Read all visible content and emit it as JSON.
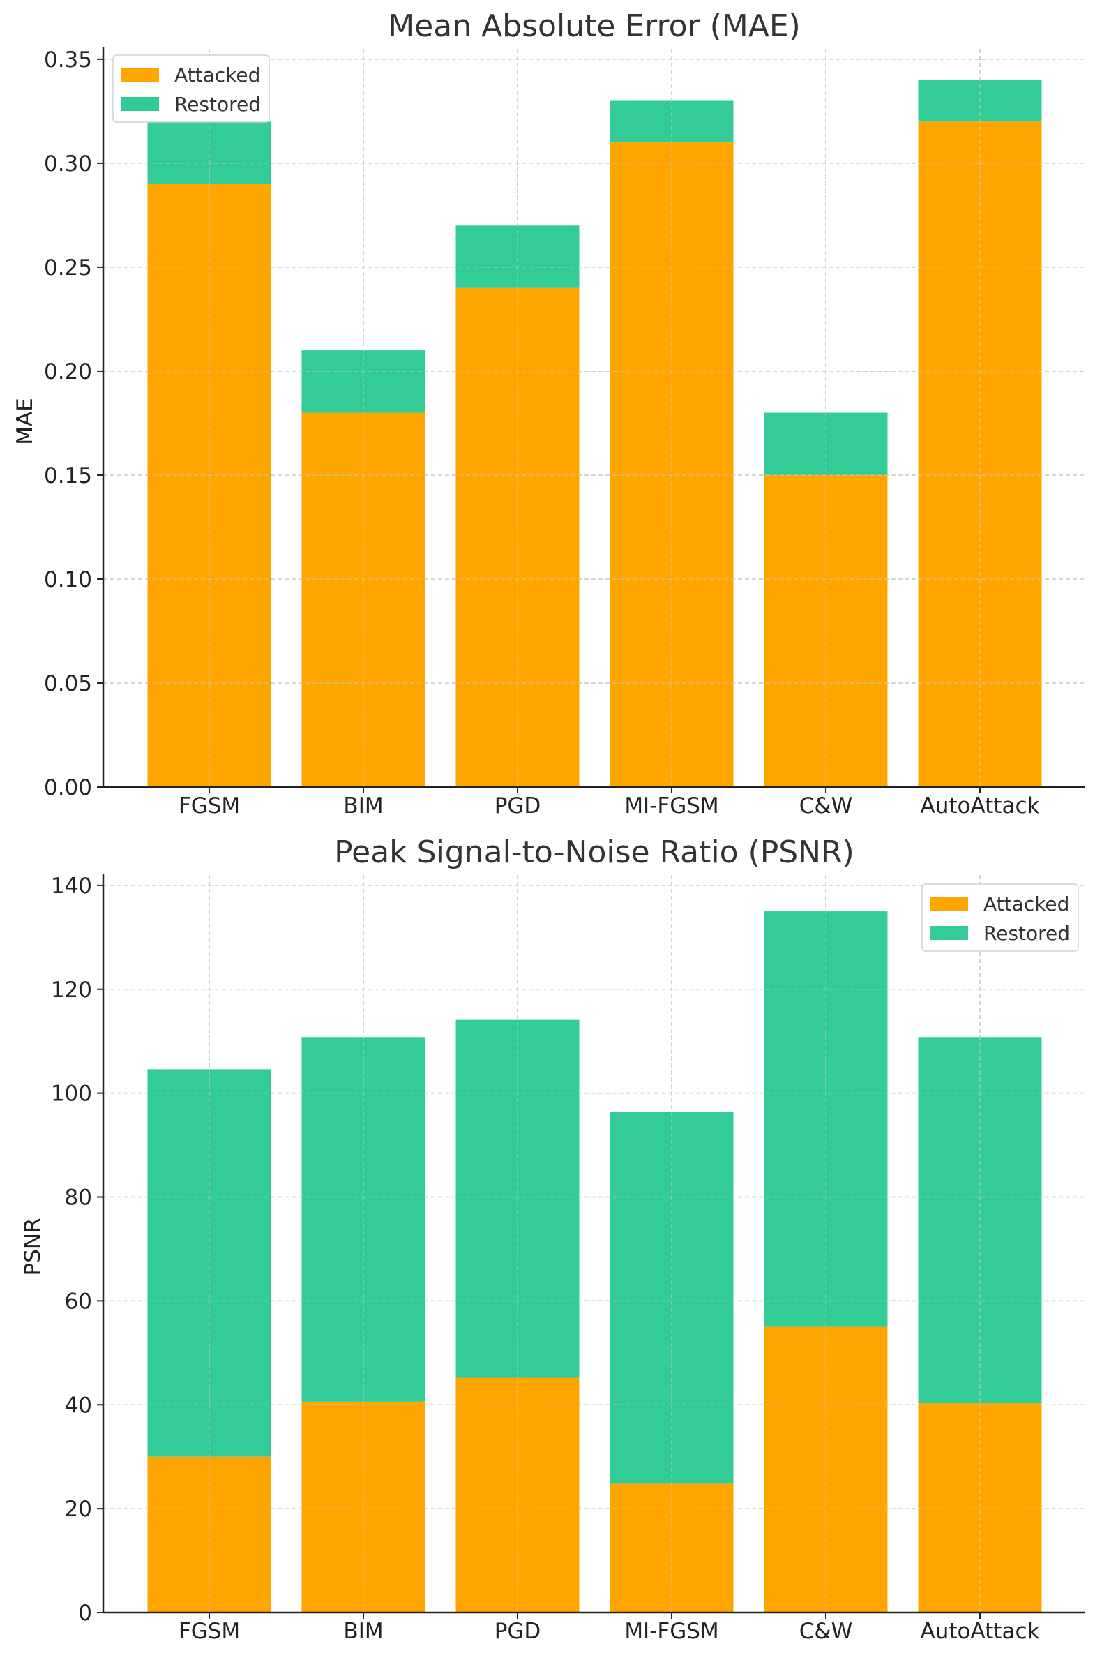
{
  "chart_data": [
    {
      "type": "bar",
      "stacked": true,
      "title": "Mean Absolute Error (MAE)",
      "xlabel": "",
      "ylabel": "MAE",
      "categories": [
        "FGSM",
        "BIM",
        "PGD",
        "MI-FGSM",
        "C&W",
        "AutoAttack"
      ],
      "series": [
        {
          "name": "Attacked",
          "color": "#FFA500",
          "values": [
            0.29,
            0.18,
            0.24,
            0.31,
            0.15,
            0.32
          ]
        },
        {
          "name": "Restored",
          "color": "#33CC96",
          "values": [
            0.03,
            0.03,
            0.03,
            0.02,
            0.03,
            0.02
          ]
        }
      ],
      "ylim": [
        0,
        0.355
      ],
      "yticks": [
        0.0,
        0.05,
        0.1,
        0.15,
        0.2,
        0.25,
        0.3,
        0.35
      ],
      "ytick_labels": [
        "0.00",
        "0.05",
        "0.10",
        "0.15",
        "0.20",
        "0.25",
        "0.30",
        "0.35"
      ],
      "grid": true,
      "legend_position": "top-left"
    },
    {
      "type": "bar",
      "stacked": true,
      "title": "Peak Signal-to-Noise Ratio (PSNR)",
      "xlabel": "",
      "ylabel": "PSNR",
      "categories": [
        "FGSM",
        "BIM",
        "PGD",
        "MI-FGSM",
        "C&W",
        "AutoAttack"
      ],
      "series": [
        {
          "name": "Attacked",
          "color": "#FFA500",
          "values": [
            30,
            40.6,
            45.2,
            24.8,
            55,
            40.3
          ]
        },
        {
          "name": "Restored",
          "color": "#33CC96",
          "values": [
            74.6,
            70.2,
            68.9,
            71.6,
            80,
            70.5
          ]
        }
      ],
      "ylim": [
        0,
        142
      ],
      "yticks": [
        0,
        20,
        40,
        60,
        80,
        100,
        120,
        140
      ],
      "ytick_labels": [
        "0",
        "20",
        "40",
        "60",
        "80",
        "100",
        "120",
        "140"
      ],
      "grid": true,
      "legend_position": "top-right"
    }
  ]
}
